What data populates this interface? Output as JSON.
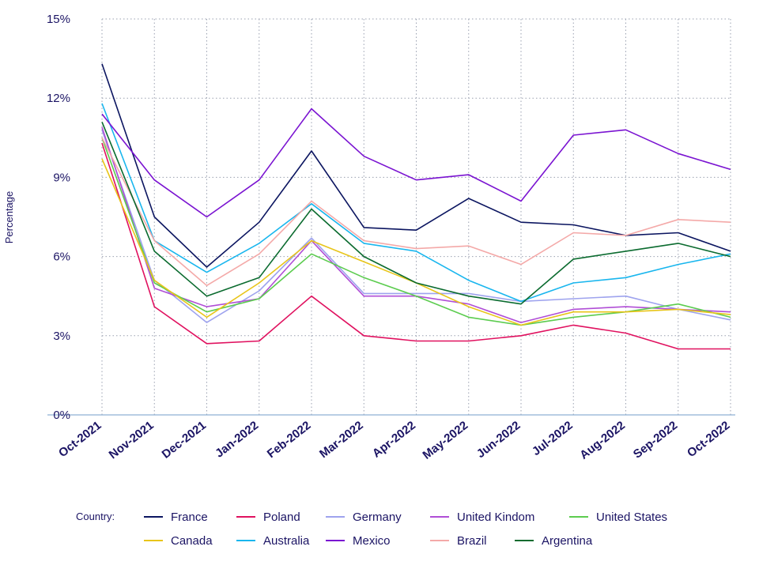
{
  "chart_data": {
    "type": "line",
    "title": "",
    "xlabel": "",
    "ylabel": "Percentage",
    "ylim": [
      0,
      15
    ],
    "yticks": [
      "0%",
      "3%",
      "6%",
      "9%",
      "12%",
      "15%"
    ],
    "ytick_values": [
      0,
      3,
      6,
      9,
      12,
      15
    ],
    "grid": "dotted",
    "legend_title": "Country:",
    "legend_position": "bottom",
    "categories": [
      "Oct-2021",
      "Nov-2021",
      "Dec-2021",
      "Jan-2022",
      "Feb-2022",
      "Mar-2022",
      "Apr-2022",
      "May-2022",
      "Jun-2022",
      "Jul-2022",
      "Aug-2022",
      "Sep-2022",
      "Oct-2022"
    ],
    "series": [
      {
        "name": "France",
        "color": "#0b1560",
        "values": [
          13.3,
          7.5,
          5.6,
          7.3,
          10.0,
          7.1,
          7.0,
          8.2,
          7.3,
          7.2,
          6.8,
          6.9,
          6.2
        ]
      },
      {
        "name": "Poland",
        "color": "#e0115f",
        "values": [
          10.3,
          4.1,
          2.7,
          2.8,
          4.5,
          3.0,
          2.8,
          2.8,
          3.0,
          3.4,
          3.1,
          2.5,
          2.5
        ]
      },
      {
        "name": "Germany",
        "color": "#9ea3ee",
        "values": [
          10.8,
          5.1,
          3.5,
          4.7,
          6.7,
          4.6,
          4.6,
          4.6,
          4.3,
          4.4,
          4.5,
          4.0,
          3.6
        ]
      },
      {
        "name": "United Kindom",
        "color": "#b04ed6",
        "values": [
          10.9,
          4.8,
          4.1,
          4.4,
          6.6,
          4.5,
          4.5,
          4.2,
          3.5,
          4.0,
          4.1,
          4.0,
          3.9
        ]
      },
      {
        "name": "United States",
        "color": "#5ccc4f",
        "values": [
          10.5,
          5.0,
          3.9,
          4.4,
          6.1,
          5.2,
          4.5,
          3.7,
          3.4,
          3.7,
          3.9,
          4.2,
          3.7
        ]
      },
      {
        "name": "Canada",
        "color": "#e8c51a",
        "values": [
          9.7,
          5.1,
          3.7,
          5.0,
          6.6,
          5.8,
          5.0,
          4.1,
          3.4,
          3.9,
          3.9,
          4.0,
          3.8
        ]
      },
      {
        "name": "Australia",
        "color": "#19b6ee",
        "values": [
          11.8,
          6.6,
          5.4,
          6.5,
          8.0,
          6.5,
          6.2,
          5.1,
          4.3,
          5.0,
          5.2,
          5.7,
          6.1
        ]
      },
      {
        "name": "Mexico",
        "color": "#7a13d1",
        "values": [
          11.4,
          8.9,
          7.5,
          8.9,
          11.6,
          9.8,
          8.9,
          9.1,
          8.1,
          10.6,
          10.8,
          9.9,
          9.3
        ]
      },
      {
        "name": "Brazil",
        "color": "#f4a9a8",
        "values": [
          10.5,
          6.6,
          4.9,
          6.1,
          8.1,
          6.6,
          6.3,
          6.4,
          5.7,
          6.9,
          6.8,
          7.4,
          7.3
        ]
      },
      {
        "name": "Argentina",
        "color": "#0b6b2f",
        "values": [
          11.1,
          6.2,
          4.5,
          5.2,
          7.8,
          6.0,
          5.0,
          4.5,
          4.2,
          5.9,
          6.2,
          6.5,
          6.0
        ]
      }
    ]
  }
}
